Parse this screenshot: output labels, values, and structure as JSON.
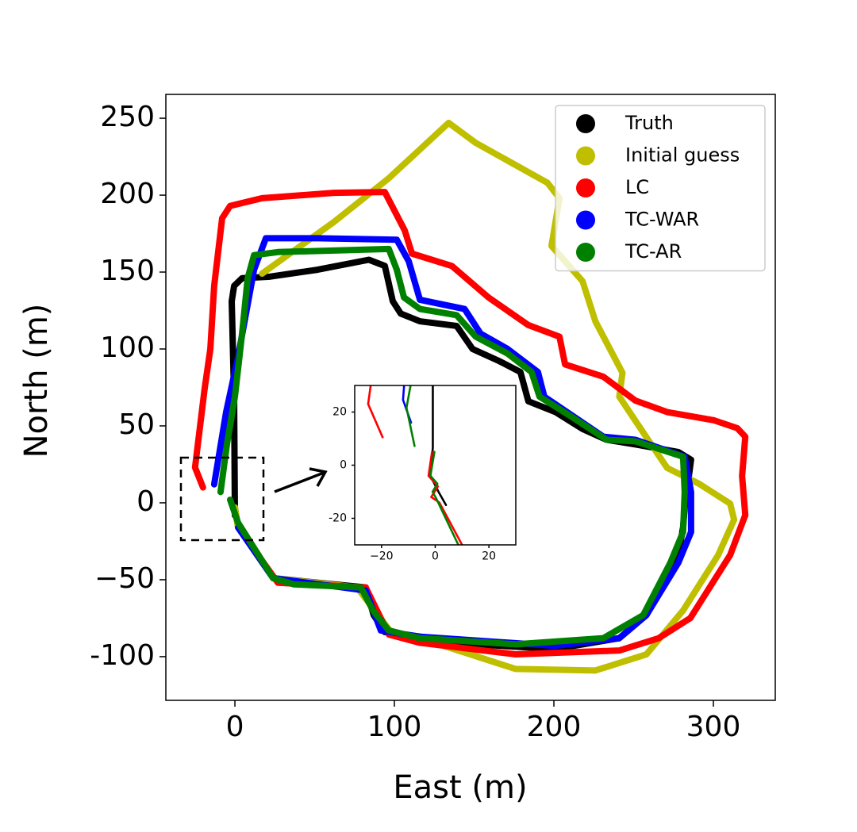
{
  "chart_data": [
    {
      "type": "line",
      "xlabel": "East (m)",
      "ylabel": "North (m)",
      "xlim": [
        -43.3,
        338.8
      ],
      "ylim": [
        -128.4,
        265.5
      ],
      "xticks": [
        0,
        100,
        200,
        300
      ],
      "yticks": [
        250,
        200,
        150,
        100,
        50,
        0,
        {
          "value": -50,
          "label": "−50"
        },
        {
          "value": -100,
          "label": "-100"
        }
      ],
      "legend": "upper right",
      "series": [
        {
          "name": "Truth",
          "color": "#000000",
          "x": [
            0,
            -0.5,
            -2,
            -0.5,
            4.5,
            21.9,
            51.7,
            84,
            94,
            99,
            104,
            116,
            139,
            149,
            166,
            179,
            184,
            201,
            218,
            233,
            251,
            278,
            286,
            282,
            281,
            278,
            258,
            241,
            201,
            151,
            116,
            94,
            87,
            82,
            62,
            24,
            2,
            0
          ],
          "values": [
            -8.2,
            69,
            131,
            141,
            146,
            147,
            151.5,
            158,
            154,
            131,
            123,
            118,
            115,
            100,
            92,
            85,
            66,
            59,
            48,
            41,
            38,
            33,
            28,
            -3,
            -16,
            -34,
            -73,
            -88,
            -95,
            -92,
            -87,
            -84,
            -73,
            -55,
            -53,
            -49,
            -16,
            -3
          ]
        },
        {
          "name": "Initial guess",
          "color": "#bfbf00",
          "x": [
            17,
            62,
            96.5,
            134,
            151,
            196,
            203.5,
            198.5,
            218,
            226,
            243,
            241,
            261,
            271,
            291,
            310.5,
            313,
            303,
            281,
            258,
            226,
            176,
            131,
            99,
            84,
            76.6,
            24,
            2,
            0
          ],
          "values": [
            149,
            182.5,
            211,
            247,
            234,
            208,
            198,
            167,
            144,
            118,
            84.5,
            69,
            38,
            22.7,
            12.4,
            -0.5,
            -11,
            -34,
            -70,
            -98.5,
            -109,
            -108,
            -93,
            -85.6,
            -65,
            -55,
            -49,
            -16,
            -3
          ]
        },
        {
          "name": "LC",
          "color": "#ff0000",
          "x": [
            -20,
            -25,
            -19,
            -15.4,
            -13,
            -8,
            -3,
            17,
            62,
            94,
            106.5,
            111,
            136,
            159,
            184,
            203.5,
            207,
            231,
            251,
            271,
            300.5,
            315,
            320,
            318,
            320,
            310.5,
            285.5,
            265.7,
            241,
            176,
            116,
            96.5,
            82,
            27,
            2
          ],
          "values": [
            10,
            23,
            74,
            100,
            141,
            185,
            193,
            198,
            201.5,
            202,
            177,
            162,
            154,
            133.5,
            115.5,
            108,
            90,
            82,
            66.5,
            59,
            53.6,
            48.5,
            43,
            17.5,
            -8,
            -34,
            -75,
            -88,
            -96,
            -98.5,
            -91,
            -85.6,
            -55,
            -52,
            -16
          ]
        },
        {
          "name": "TC-WAR",
          "color": "#0000ff",
          "x": [
            -13,
            -5.5,
            2,
            12,
            19.4,
            52,
            101.5,
            109,
            116,
            144,
            154,
            171,
            190,
            194,
            231,
            251,
            282,
            286,
            286,
            278,
            258,
            241,
            201,
            116,
            91.5,
            82,
            24,
            2
          ],
          "values": [
            12,
            59,
            95,
            151.5,
            172,
            172,
            171,
            157,
            132,
            126,
            110,
            100,
            85,
            69,
            43,
            41,
            30,
            7,
            -19,
            -39,
            -73,
            -88,
            -93,
            -87,
            -83,
            -57,
            -49,
            -16
          ]
        },
        {
          "name": "TC-AR",
          "color": "#008000",
          "x": [
            -9,
            -5,
            0,
            4.5,
            8,
            12,
            27,
            62,
            96.5,
            101.5,
            106,
            116,
            139,
            151,
            171,
            186,
            191,
            211,
            233,
            251,
            281,
            282,
            281,
            273,
            256,
            231,
            176,
            116,
            96.5,
            86.6,
            79,
            37,
            24,
            2,
            -3
          ],
          "values": [
            7,
            38,
            69,
            110,
            146,
            161,
            163,
            164,
            165,
            151.5,
            133.5,
            126,
            122,
            108,
            97,
            85,
            69,
            56,
            41,
            40,
            30,
            7,
            -19,
            -39,
            -73,
            -88,
            -92,
            -88,
            -83,
            -70,
            -55,
            -53,
            -49,
            -13,
            2
          ]
        }
      ]
    },
    {
      "type": "line",
      "xlim": [
        -30,
        30
      ],
      "ylim": [
        -30,
        30
      ],
      "xticks": [
        {
          "value": -20,
          "label": "−20"
        },
        0,
        20
      ],
      "yticks": [
        20,
        0,
        {
          "value": -20,
          "label": "-20"
        }
      ],
      "series": [
        {
          "color": "#000000",
          "x": [
            -0.9,
            -0.9,
            -1.8,
            1.2,
            4
          ],
          "values": [
            30,
            6.6,
            -4,
            -10,
            -15
          ]
        },
        {
          "color": "#ff0000",
          "x": [
            -24,
            -25,
            -19.6
          ],
          "values": [
            30.3,
            23,
            10.5
          ]
        },
        {
          "color": "#0000ff",
          "x": [
            -11.6,
            -12,
            -9
          ],
          "values": [
            30,
            24.6,
            16
          ]
        },
        {
          "color": "#008000",
          "x": [
            -9.2,
            -10.7,
            -7.7
          ],
          "values": [
            30,
            21.6,
            7.2
          ]
        },
        {
          "color": "#ff0000",
          "x": [
            -1.2,
            -2.5,
            1,
            -1.5,
            1.5,
            10
          ],
          "values": [
            5,
            -4,
            -8,
            -12,
            -14,
            -30
          ]
        },
        {
          "color": "#008000",
          "x": [
            -0.3,
            -1.8,
            0.8,
            -1,
            0.6,
            8.6
          ],
          "values": [
            5,
            -4,
            -7,
            -10,
            -13,
            -30
          ]
        }
      ]
    }
  ]
}
